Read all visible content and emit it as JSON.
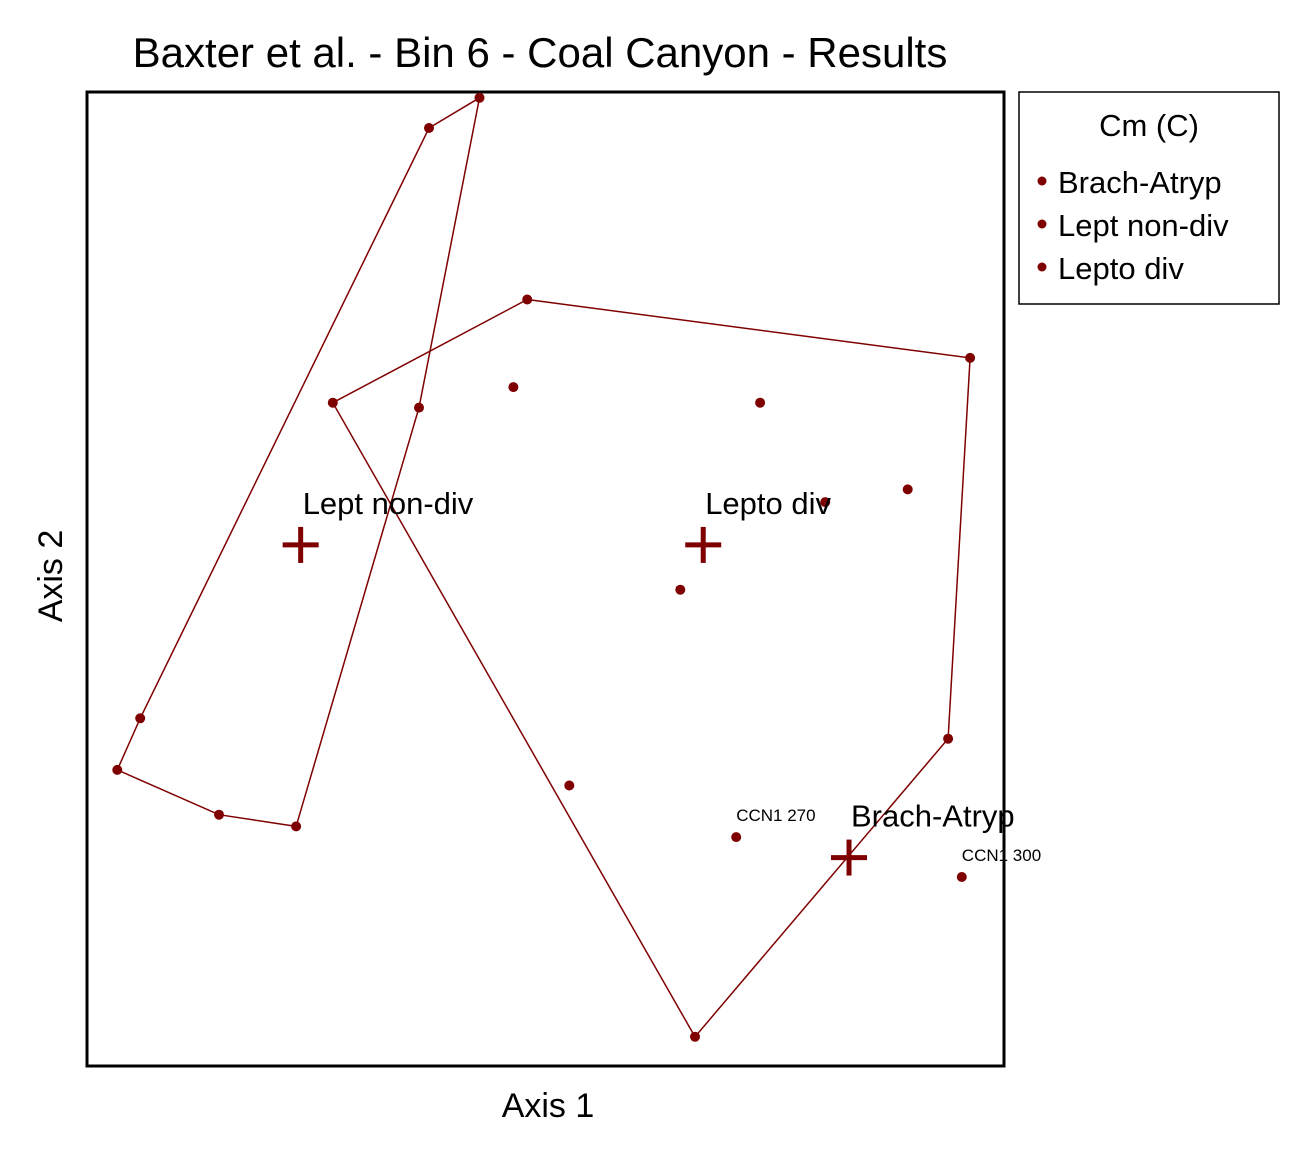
{
  "chart_data": {
    "type": "scatter",
    "title": "Baxter et al. - Bin 6 - Coal Canyon - Results",
    "xlabel": "Axis 1",
    "ylabel": "Axis 2",
    "xlim": [
      0,
      1
    ],
    "ylim": [
      0,
      1
    ],
    "grid": false,
    "legend_position": "top-right",
    "color": "#7f0000",
    "legend": {
      "title": "Cm (C)",
      "entries": [
        "Brach-Atryp",
        "Lept non-div",
        "Lepto div"
      ]
    },
    "points": [
      {
        "x": 0.373,
        "y": 0.963
      },
      {
        "x": 0.428,
        "y": 0.994
      },
      {
        "x": 0.362,
        "y": 0.676
      },
      {
        "x": 0.058,
        "y": 0.357
      },
      {
        "x": 0.033,
        "y": 0.304
      },
      {
        "x": 0.144,
        "y": 0.258
      },
      {
        "x": 0.228,
        "y": 0.246
      },
      {
        "x": 0.48,
        "y": 0.787
      },
      {
        "x": 0.963,
        "y": 0.727
      },
      {
        "x": 0.939,
        "y": 0.336
      },
      {
        "x": 0.663,
        "y": 0.03
      },
      {
        "x": 0.268,
        "y": 0.681
      },
      {
        "x": 0.465,
        "y": 0.697
      },
      {
        "x": 0.734,
        "y": 0.681
      },
      {
        "x": 0.895,
        "y": 0.592
      },
      {
        "x": 0.805,
        "y": 0.579
      },
      {
        "x": 0.647,
        "y": 0.489
      },
      {
        "x": 0.526,
        "y": 0.288
      },
      {
        "x": 0.708,
        "y": 0.235,
        "label": "CCN1 270"
      },
      {
        "x": 0.954,
        "y": 0.194,
        "label": "CCN1 300"
      }
    ],
    "hulls": [
      {
        "name": "Lept non-div",
        "points": [
          [
            0.373,
            0.963
          ],
          [
            0.428,
            0.994
          ],
          [
            0.362,
            0.676
          ],
          [
            0.228,
            0.246
          ],
          [
            0.144,
            0.258
          ],
          [
            0.033,
            0.304
          ],
          [
            0.058,
            0.357
          ]
        ]
      },
      {
        "name": "Lepto div",
        "points": [
          [
            0.48,
            0.787
          ],
          [
            0.963,
            0.727
          ],
          [
            0.939,
            0.336
          ],
          [
            0.663,
            0.03
          ],
          [
            0.268,
            0.681
          ]
        ]
      }
    ],
    "centroids": [
      {
        "name": "Lept non-div",
        "x": 0.233,
        "y": 0.535
      },
      {
        "name": "Lepto div",
        "x": 0.672,
        "y": 0.535
      },
      {
        "name": "Brach-Atryp",
        "x": 0.831,
        "y": 0.214
      }
    ]
  }
}
